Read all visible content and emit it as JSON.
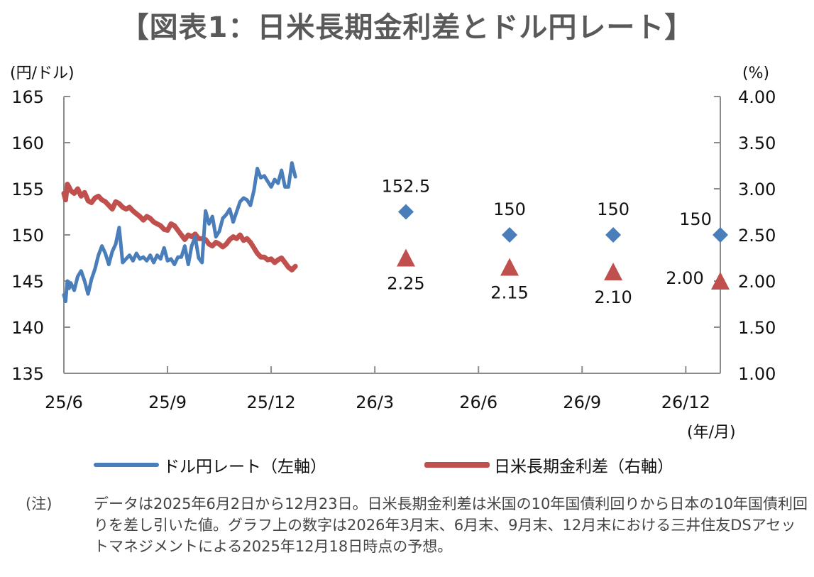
{
  "chart_data": {
    "type": "line",
    "title": "【図表1：日米長期金利差とドル円レート】",
    "left_axis": {
      "unit_label": "(円/ドル)",
      "range": [
        135,
        165
      ],
      "ticks": [
        135,
        140,
        145,
        150,
        155,
        160,
        165
      ],
      "tick_labels": [
        "135",
        "140",
        "145",
        "150",
        "155",
        "160",
        "165"
      ]
    },
    "right_axis": {
      "unit_label": "(%)",
      "range": [
        1.0,
        4.0
      ],
      "ticks": [
        1.0,
        1.5,
        2.0,
        2.5,
        3.0,
        3.5,
        4.0
      ],
      "tick_labels": [
        "1.00",
        "1.50",
        "2.00",
        "2.50",
        "3.00",
        "3.50",
        "4.00"
      ]
    },
    "x_axis": {
      "unit_label": "(年/月)",
      "tick_labels": [
        "25/6",
        "25/9",
        "25/12",
        "26/3",
        "26/6",
        "26/9",
        "26/12"
      ],
      "range_months": [
        0,
        19
      ]
    },
    "grid": false,
    "legend_position": "bottom",
    "series": [
      {
        "name": "ドル円レート（左軸）",
        "axis": "left",
        "color": "#4a7ebb",
        "x_months": [
          0.0,
          0.05,
          0.1,
          0.15,
          0.2,
          0.3,
          0.4,
          0.5,
          0.6,
          0.7,
          0.8,
          0.9,
          1.0,
          1.1,
          1.2,
          1.3,
          1.4,
          1.5,
          1.6,
          1.7,
          1.8,
          1.9,
          2.0,
          2.1,
          2.2,
          2.3,
          2.4,
          2.5,
          2.6,
          2.7,
          2.8,
          2.9,
          3.0,
          3.1,
          3.2,
          3.3,
          3.4,
          3.5,
          3.6,
          3.7,
          3.8,
          3.9,
          4.0,
          4.1,
          4.2,
          4.3,
          4.4,
          4.5,
          4.6,
          4.7,
          4.8,
          4.9,
          5.0,
          5.1,
          5.2,
          5.3,
          5.4,
          5.5,
          5.6,
          5.7,
          5.8,
          5.9,
          6.0,
          6.1,
          6.2,
          6.3,
          6.4,
          6.5,
          6.6,
          6.7
        ],
        "values": [
          143.5,
          142.8,
          145.0,
          144.2,
          144.8,
          144.0,
          145.5,
          146.1,
          145.0,
          143.6,
          145.2,
          146.3,
          147.8,
          148.8,
          148.0,
          146.8,
          148.2,
          149.0,
          150.8,
          147.0,
          147.4,
          147.8,
          147.2,
          148.0,
          147.4,
          147.6,
          147.2,
          147.8,
          147.0,
          147.8,
          147.4,
          148.6,
          147.2,
          147.4,
          146.8,
          147.6,
          147.6,
          148.8,
          146.8,
          148.8,
          149.8,
          147.5,
          147.0,
          152.6,
          151.2,
          152.0,
          149.8,
          150.4,
          151.8,
          152.2,
          152.8,
          151.4,
          152.5,
          153.6,
          154.0,
          153.8,
          153.2,
          154.8,
          157.2,
          156.2,
          156.4,
          155.8,
          155.2,
          156.0,
          155.6,
          157.0,
          155.2,
          155.2,
          157.8,
          156.3
        ],
        "data_range_note": "2025/6/2 – 2025/12/23"
      },
      {
        "name": "日米長期金利差（右軸）",
        "axis": "right",
        "color": "#c0504d",
        "x_months": [
          0.0,
          0.05,
          0.1,
          0.15,
          0.2,
          0.3,
          0.4,
          0.5,
          0.6,
          0.7,
          0.8,
          0.9,
          1.0,
          1.1,
          1.2,
          1.3,
          1.4,
          1.5,
          1.6,
          1.7,
          1.8,
          1.9,
          2.0,
          2.1,
          2.2,
          2.3,
          2.4,
          2.5,
          2.6,
          2.7,
          2.8,
          2.9,
          3.0,
          3.1,
          3.2,
          3.3,
          3.4,
          3.5,
          3.6,
          3.7,
          3.8,
          3.9,
          4.0,
          4.1,
          4.2,
          4.3,
          4.4,
          4.5,
          4.6,
          4.7,
          4.8,
          4.9,
          5.0,
          5.1,
          5.2,
          5.3,
          5.4,
          5.5,
          5.6,
          5.7,
          5.8,
          5.9,
          6.0,
          6.1,
          6.2,
          6.3,
          6.4,
          6.5,
          6.6,
          6.7
        ],
        "values": [
          2.95,
          2.88,
          3.05,
          3.02,
          2.98,
          2.95,
          3.0,
          2.92,
          2.96,
          2.87,
          2.85,
          2.9,
          2.92,
          2.88,
          2.86,
          2.82,
          2.78,
          2.86,
          2.84,
          2.8,
          2.78,
          2.8,
          2.76,
          2.73,
          2.7,
          2.66,
          2.7,
          2.68,
          2.64,
          2.62,
          2.6,
          2.56,
          2.55,
          2.62,
          2.6,
          2.55,
          2.5,
          2.45,
          2.5,
          2.48,
          2.51,
          2.46,
          2.46,
          2.45,
          2.4,
          2.38,
          2.42,
          2.4,
          2.37,
          2.4,
          2.45,
          2.48,
          2.46,
          2.5,
          2.44,
          2.46,
          2.42,
          2.36,
          2.3,
          2.26,
          2.26,
          2.23,
          2.24,
          2.2,
          2.23,
          2.25,
          2.2,
          2.15,
          2.12,
          2.16
        ]
      },
      {
        "name": "ドル円レート予想",
        "axis": "left",
        "marker": "diamond",
        "color": "#4a7ebb",
        "x_months": [
          9.9,
          12.9,
          15.9,
          19.0
        ],
        "values": [
          152.5,
          150,
          150,
          150
        ],
        "labels": [
          "152.5",
          "150",
          "150",
          "150"
        ]
      },
      {
        "name": "日米長期金利差予想",
        "axis": "right",
        "marker": "triangle",
        "color": "#c0504d",
        "x_months": [
          9.9,
          12.9,
          15.9,
          19.0
        ],
        "values": [
          2.25,
          2.15,
          2.1,
          2.0
        ],
        "labels": [
          "2.25",
          "2.15",
          "2.10",
          "2.00"
        ]
      }
    ]
  },
  "legend": [
    {
      "label": "ドル円レート（左軸）",
      "color": "#4a7ebb"
    },
    {
      "label": "日米長期金利差（右軸）",
      "color": "#c0504d"
    }
  ],
  "notes": {
    "label": "(注)",
    "text": "データは2025年6月2日から12月23日。日米長期金利差は米国の10年国債利回りから日本の10年国債利回りを差し引いた値。グラフ上の数字は2026年3月末、6月末、9月末、12月末における三井住友DSアセットマネジメントによる2025年12月18日時点の予想。"
  }
}
